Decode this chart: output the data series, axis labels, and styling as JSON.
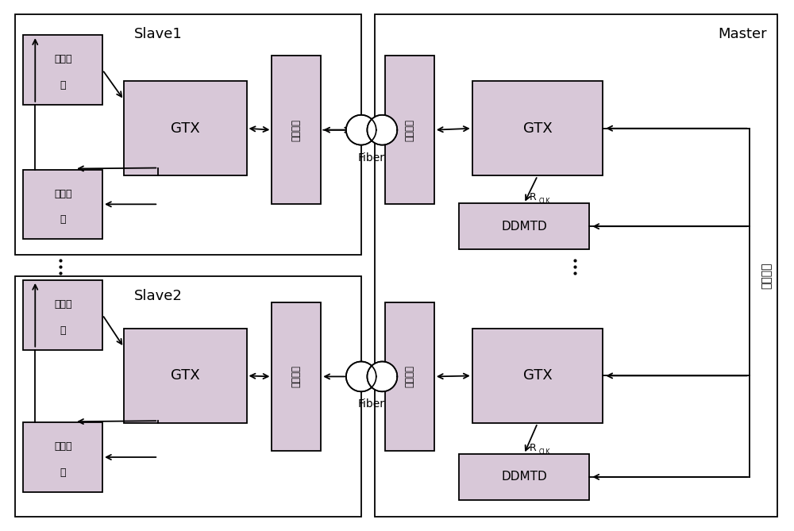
{
  "bg_color": "#ffffff",
  "box_fill": "#d8c8d8",
  "box_edge": "#000000",
  "fig_width": 10.0,
  "fig_height": 6.69,
  "slave1_label": "Slave1",
  "slave2_label": "Slave2",
  "master_label": "Master",
  "fiber_label": "Fiber",
  "ddmtd_label": "DDMTD",
  "gtx_label": "GTX",
  "guangdian_label": "光电转换",
  "xiangwei_line1": "相位细",
  "xiangwei_line2": "调",
  "xitong_label": "系统时钟",
  "rclk_r": "R",
  "rclk_sub": "CLK"
}
